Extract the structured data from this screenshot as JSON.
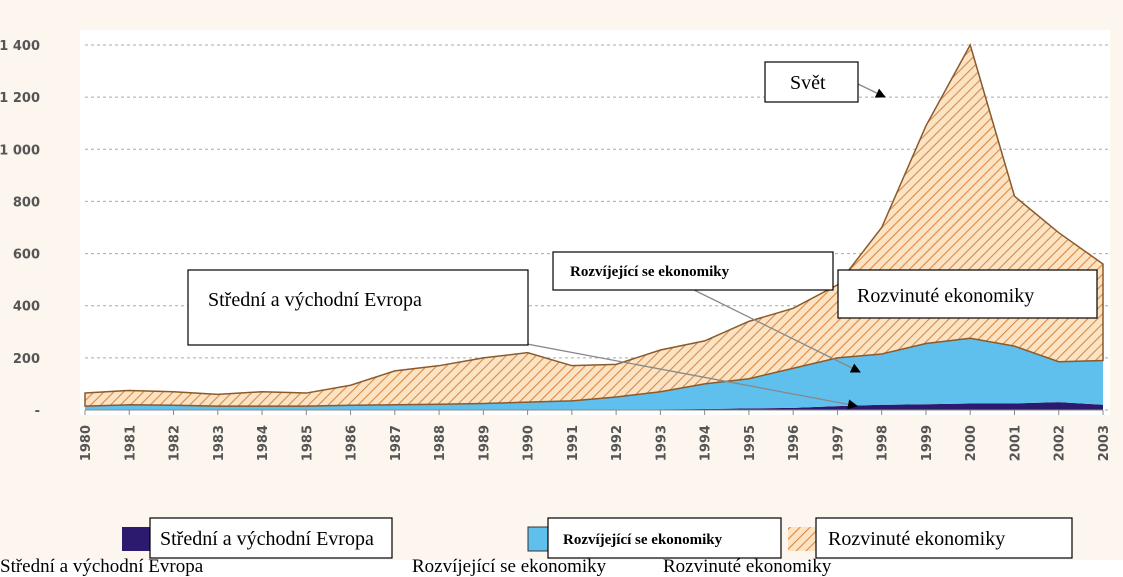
{
  "chart_data": {
    "type": "stacked_area",
    "categories": [
      "1980",
      "1981",
      "1982",
      "1983",
      "1984",
      "1985",
      "1986",
      "1987",
      "1988",
      "1989",
      "1990",
      "1991",
      "1992",
      "1993",
      "1994",
      "1995",
      "1996",
      "1997",
      "1998",
      "1999",
      "2000",
      "2001",
      "2002",
      "2003"
    ],
    "series": [
      {
        "name": "Střední a východní Evropa",
        "color": "#2b1a6e",
        "values": [
          0,
          0,
          0,
          0,
          0,
          0,
          0,
          0,
          0,
          0,
          2,
          2,
          2,
          3,
          4,
          6,
          8,
          15,
          20,
          22,
          25,
          25,
          30,
          20
        ]
      },
      {
        "name": "Rozvíjející se ekonomiky",
        "color": "#5fc0ee",
        "values": [
          15,
          20,
          18,
          15,
          15,
          15,
          18,
          20,
          22,
          25,
          28,
          33,
          48,
          67,
          96,
          114,
          152,
          185,
          195,
          233,
          250,
          220,
          155,
          170
        ]
      },
      {
        "name": "Rozvinuté ekonomiky",
        "color": "#e39a55",
        "values": [
          50,
          55,
          52,
          45,
          55,
          50,
          77,
          130,
          148,
          175,
          190,
          135,
          125,
          160,
          165,
          220,
          230,
          280,
          485,
          835,
          1125,
          575,
          495,
          370
        ]
      }
    ],
    "ylim": [
      0,
      1400
    ],
    "yticks": [
      {
        "value": 0,
        "label": "-"
      },
      200,
      400,
      600,
      800,
      {
        "value": 1000,
        "label": "1 000"
      },
      {
        "value": 1200,
        "label": "1 200"
      },
      {
        "value": 1400,
        "label": "1 400"
      }
    ],
    "grid": true,
    "annotations": [
      "Svět",
      "Střední a východní Evropa",
      "Rozvíjející se ekonomiky",
      "Rozvinuté ekonomiky"
    ],
    "footer_labels": [
      "Střední a východní Evropa",
      "Rozvíjející se ekonomiky",
      "Rozvinuté ekonomiky"
    ]
  }
}
